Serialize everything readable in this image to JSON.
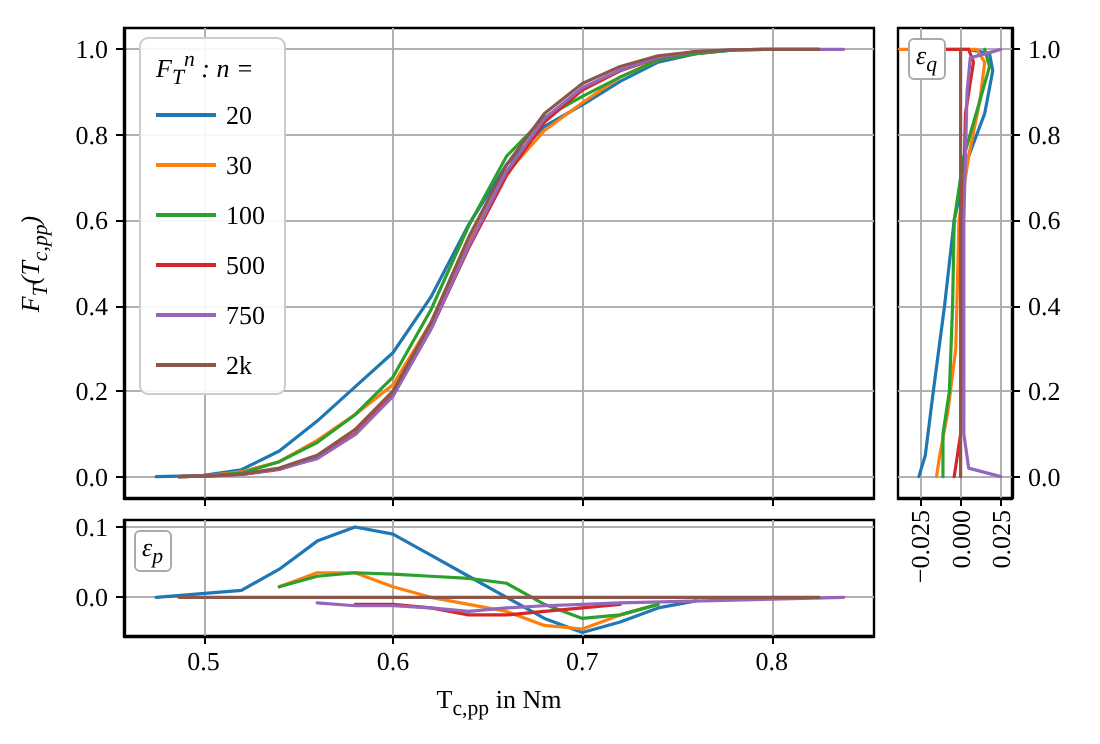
{
  "chart_data": [
    {
      "type": "line",
      "ylabel": "F$_{T}$(T$_{c,pp}$)",
      "legend_title": "F$_{T}$$^{n}$ : n =",
      "legend": "top left",
      "grid": true,
      "tick_labels": "y",
      "x": [
        0.475,
        0.487,
        0.5,
        0.52,
        0.54,
        0.56,
        0.58,
        0.6,
        0.62,
        0.64,
        0.66,
        0.68,
        0.7,
        0.72,
        0.74,
        0.76,
        0.78,
        0.8,
        0.825,
        0.838
      ],
      "xlim": [
        0.458,
        0.854
      ],
      "xticks": [
        0.5,
        0.6,
        0.7,
        0.8
      ],
      "ylim": [
        -0.05,
        1.05
      ],
      "yticks": [
        {
          "value": 0,
          "label": "0.0"
        },
        {
          "value": 0.2,
          "label": "0.2"
        },
        {
          "value": 0.4,
          "label": "0.4"
        },
        {
          "value": 0.6,
          "label": "0.6"
        },
        {
          "value": 0.8,
          "label": "0.8"
        },
        {
          "value": 1,
          "label": "1.0"
        }
      ],
      "series": [
        {
          "name": "20",
          "color": "#1f77b4",
          "values": [
            0,
            0.001,
            0.003,
            0.016,
            0.06,
            0.13,
            0.21,
            0.29,
            0.42,
            0.59,
            0.73,
            0.82,
            0.87,
            0.925,
            0.97,
            0.99,
            0.999,
            null,
            null,
            null
          ]
        },
        {
          "name": "30",
          "color": "#ff7f0e",
          "values": [
            null,
            0,
            0.001,
            0.011,
            0.035,
            0.085,
            0.145,
            0.215,
            0.36,
            0.55,
            0.71,
            0.81,
            0.875,
            0.935,
            0.975,
            null,
            null,
            null,
            null,
            null
          ]
        },
        {
          "name": "100",
          "color": "#2ca02c",
          "values": [
            null,
            0,
            0.001,
            0.008,
            0.035,
            0.08,
            0.145,
            0.233,
            0.39,
            0.587,
            0.75,
            0.84,
            0.89,
            0.935,
            0.975,
            0.99,
            0.999,
            1,
            1,
            null
          ]
        },
        {
          "name": "500",
          "color": "#d62728",
          "values": [
            null,
            0,
            0.001,
            0.005,
            0.017,
            0.045,
            0.1,
            0.19,
            0.345,
            0.535,
            0.705,
            0.83,
            0.905,
            0.95,
            0.98,
            0.995,
            null,
            null,
            null,
            null
          ]
        },
        {
          "name": "750",
          "color": "#9467bd",
          "values": [
            null,
            0,
            0.001,
            0.005,
            0.018,
            0.042,
            0.098,
            0.188,
            0.345,
            0.54,
            0.715,
            0.838,
            0.91,
            0.952,
            0.981,
            0.995,
            0.999,
            1,
            1,
            1
          ]
        },
        {
          "name": "2k",
          "color": "#8c564b",
          "values": [
            null,
            0,
            0.001,
            0.006,
            0.02,
            0.05,
            0.11,
            0.2,
            0.36,
            0.56,
            0.73,
            0.85,
            0.92,
            0.96,
            0.985,
            0.995,
            0.999,
            1,
            1,
            null
          ]
        }
      ]
    },
    {
      "type": "line",
      "annotations": [
        "ε$_{q}$"
      ],
      "grid": true,
      "xlim": [
        -0.039,
        0.032
      ],
      "xticks": [
        {
          "value": -0.025,
          "label": "−0.025"
        },
        {
          "value": 0,
          "label": "0.000"
        },
        {
          "value": 0.025,
          "label": "0.025"
        }
      ],
      "ylim": [
        -0.05,
        1.05
      ],
      "yticks": [
        {
          "value": 0,
          "label": "0.0"
        },
        {
          "value": 0.2,
          "label": "0.2"
        },
        {
          "value": 0.4,
          "label": "0.4"
        },
        {
          "value": 0.6,
          "label": "0.6"
        },
        {
          "value": 0.8,
          "label": "0.8"
        },
        {
          "value": 1,
          "label": "1.0"
        }
      ],
      "series": [
        {
          "color": "#1f77b4",
          "x": [
            -0.026,
            -0.022,
            -0.017,
            -0.01,
            -0.004,
            0.005,
            0.015,
            0.02,
            0.018,
            0.005
          ],
          "values": [
            0,
            0.05,
            0.2,
            0.4,
            0.6,
            0.75,
            0.85,
            0.95,
            0.99,
            1
          ]
        },
        {
          "color": "#ff7f0e",
          "x": [
            -0.015,
            -0.013,
            -0.008,
            -0.003,
            -0.001,
            0.005,
            0.012,
            0.015,
            0.01,
            -0.038
          ],
          "values": [
            0,
            0.05,
            0.15,
            0.3,
            0.6,
            0.75,
            0.88,
            0.97,
            1,
            1
          ]
        },
        {
          "color": "#2ca02c",
          "x": [
            -0.011,
            -0.011,
            -0.007,
            -0.005,
            -0.004,
            0.002,
            0.012,
            0.018,
            0.015
          ],
          "values": [
            0,
            0.1,
            0.2,
            0.4,
            0.6,
            0.75,
            0.88,
            0.96,
            1
          ]
        },
        {
          "color": "#d62728",
          "x": [
            -0.004,
            0,
            0.001,
            0.003,
            0.008,
            0.005,
            -0.01
          ],
          "values": [
            0,
            0.1,
            0.5,
            0.85,
            0.97,
            1,
            1
          ]
        },
        {
          "color": "#9467bd",
          "x": [
            0.025,
            0.005,
            0.002,
            0.002,
            0.004,
            0.006,
            0.025
          ],
          "values": [
            0,
            0.02,
            0.1,
            0.6,
            0.9,
            0.98,
            1
          ]
        },
        {
          "color": "#8c564b",
          "x": [
            0,
            0
          ],
          "values": [
            0,
            1
          ]
        }
      ]
    },
    {
      "type": "line",
      "xlabel": "T$_{c,pp}$ in Nm",
      "annotations": [
        "ε$_{p}$"
      ],
      "grid": true,
      "xlim": [
        0.458,
        0.854
      ],
      "xticks": [
        0.5,
        0.6,
        0.7,
        0.8
      ],
      "ylim": [
        -0.055,
        0.11
      ],
      "yticks": [
        {
          "value": 0,
          "label": "0.0"
        },
        {
          "value": 0.1,
          "label": "0.1"
        }
      ],
      "series": [
        {
          "color": "#1f77b4",
          "x": [
            0.475,
            0.52,
            0.54,
            0.56,
            0.58,
            0.6,
            0.62,
            0.64,
            0.66,
            0.68,
            0.7,
            0.72,
            0.74,
            0.76
          ],
          "values": [
            0,
            0.01,
            0.04,
            0.08,
            0.1,
            0.09,
            0.06,
            0.03,
            0,
            -0.03,
            -0.05,
            -0.035,
            -0.015,
            -0.005
          ]
        },
        {
          "color": "#ff7f0e",
          "x": [
            0.54,
            0.56,
            0.58,
            0.6,
            0.62,
            0.64,
            0.66,
            0.68,
            0.7,
            0.72,
            0.74
          ],
          "values": [
            0.015,
            0.035,
            0.035,
            0.015,
            0,
            -0.01,
            -0.02,
            -0.04,
            -0.045,
            -0.025,
            -0.01
          ]
        },
        {
          "color": "#2ca02c",
          "x": [
            0.54,
            0.56,
            0.58,
            0.6,
            0.62,
            0.64,
            0.66,
            0.68,
            0.7,
            0.72,
            0.74
          ],
          "values": [
            0.015,
            0.03,
            0.035,
            0.033,
            0.03,
            0.027,
            0.02,
            -0.01,
            -0.03,
            -0.025,
            -0.01
          ]
        },
        {
          "color": "#d62728",
          "x": [
            0.58,
            0.6,
            0.62,
            0.64,
            0.66,
            0.68,
            0.7,
            0.72
          ],
          "values": [
            -0.01,
            -0.01,
            -0.015,
            -0.025,
            -0.025,
            -0.02,
            -0.015,
            -0.01
          ]
        },
        {
          "color": "#9467bd",
          "x": [
            0.56,
            0.58,
            0.6,
            0.62,
            0.64,
            0.66,
            0.68,
            0.7,
            0.72,
            0.838
          ],
          "values": [
            -0.008,
            -0.012,
            -0.012,
            -0.015,
            -0.02,
            -0.015,
            -0.012,
            -0.01,
            -0.008,
            0
          ]
        },
        {
          "color": "#8c564b",
          "x": [
            0.487,
            0.825
          ],
          "values": [
            0,
            0
          ]
        }
      ]
    }
  ]
}
